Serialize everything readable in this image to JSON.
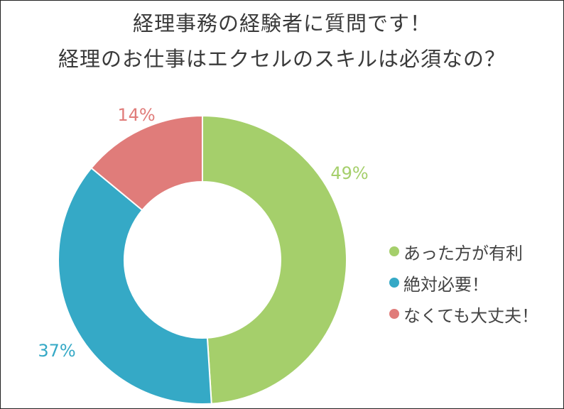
{
  "chart_data": {
    "type": "pie",
    "variant": "donut",
    "title_lines": [
      "経理事務の経験者に質問です！",
      "経理のお仕事はエクセルのスキルは必須なの？"
    ],
    "slices": [
      {
        "label": "あった方が有利",
        "value": 49,
        "value_label": "49%",
        "color": "#a5cf6b"
      },
      {
        "label": "絶対必要！",
        "value": 37,
        "value_label": "37%",
        "color": "#35a9c6"
      },
      {
        "label": "なくても大丈夫！",
        "value": 14,
        "value_label": "14%",
        "color": "#e07c7a"
      }
    ],
    "legend_position": "right",
    "start_angle": "12 o'clock",
    "direction": "clockwise"
  }
}
